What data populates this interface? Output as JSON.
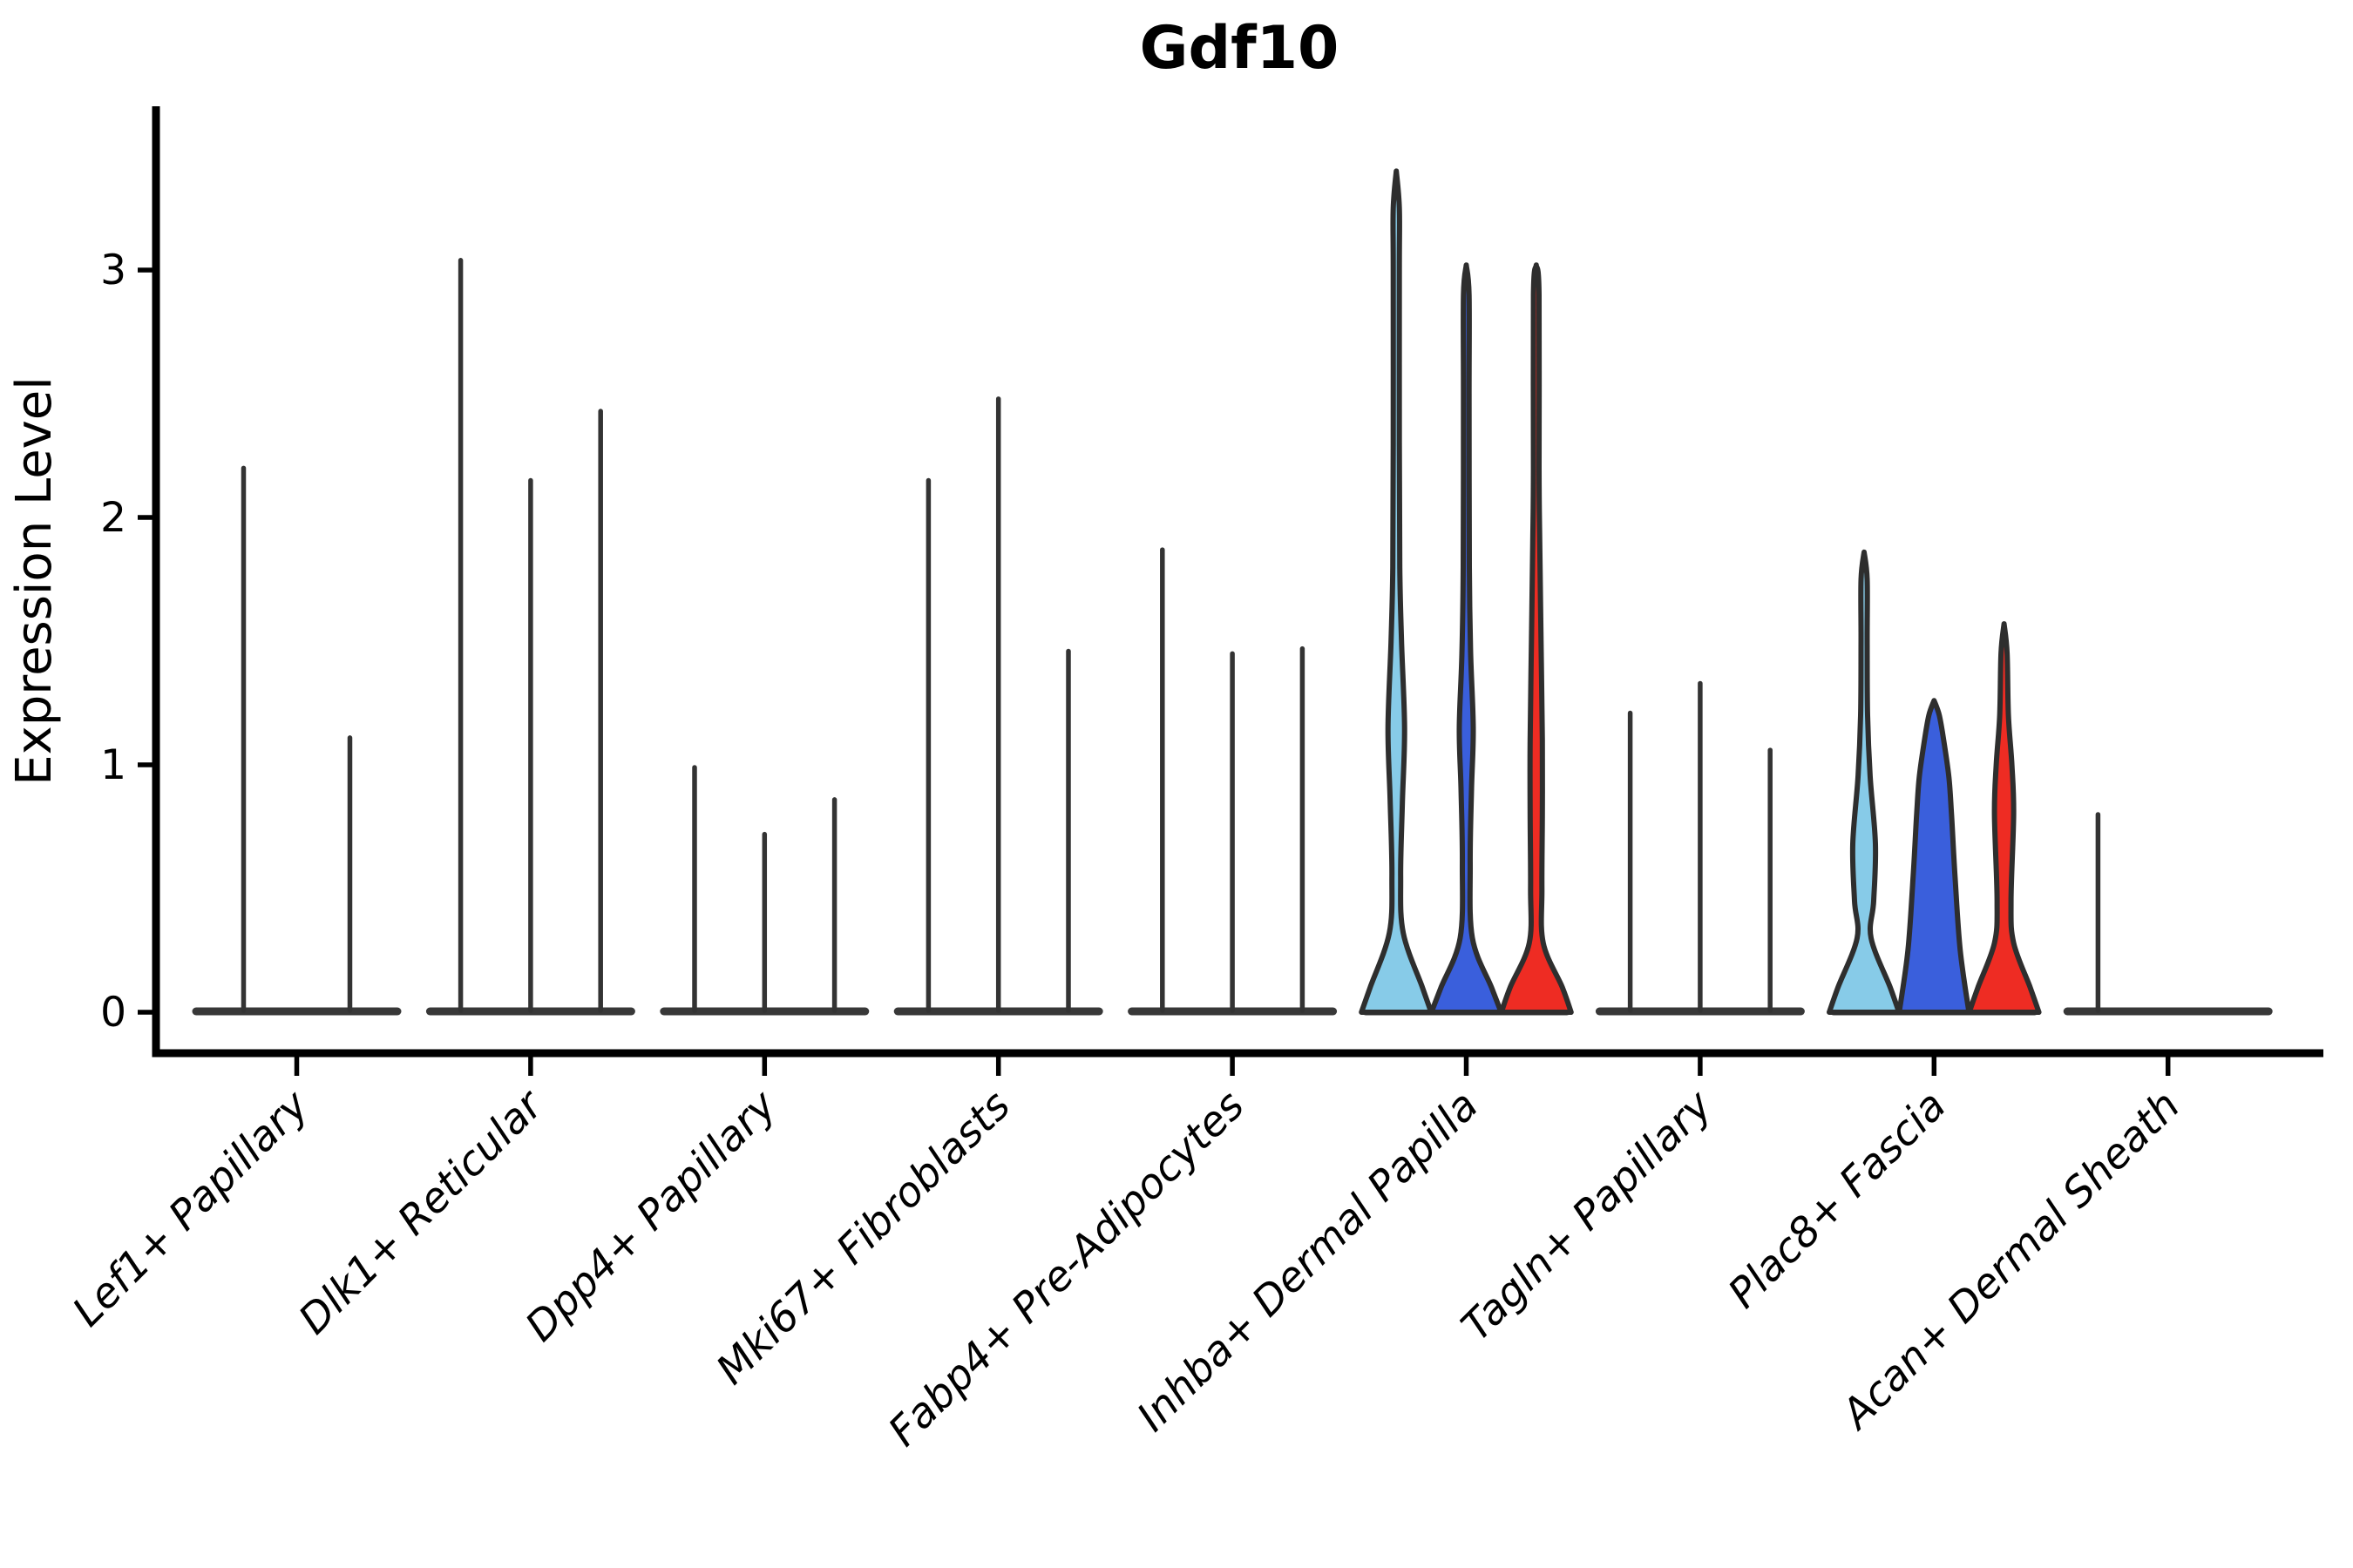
{
  "chart_data": {
    "type": "violin",
    "title": "Gdf10",
    "ylabel": "Expression Level",
    "xlabel": "",
    "grid": false,
    "legend_position": "none",
    "yticks": [
      0,
      1,
      2,
      3
    ],
    "ylim": [
      -0.17,
      3.65
    ],
    "categories": [
      "Lef1+ Papillary",
      "Dlk1+ Reticular",
      "Dpp4+ Papillary",
      "Mki67+ Fibroblasts",
      "Fabp4+ Pre-Adipocytes",
      "Inhba+ Dermal Papilla",
      "Tagln+ Papillary",
      "Plac8+ Fascia",
      "Acan+ Dermal Sheath"
    ],
    "colors": {
      "spike": "#333333",
      "outline": "#2e2e2e",
      "base_bar": "#383838",
      "lightblue": "#87cbe8",
      "blue": "#3a5fdc",
      "red": "#ee2c23"
    },
    "groups": [
      {
        "category": "Lef1+ Papillary",
        "violins": [
          {
            "style": "spike",
            "peak": 2.21
          },
          {
            "style": "spike",
            "peak": 1.12
          }
        ]
      },
      {
        "category": "Dlk1+ Reticular",
        "violins": [
          {
            "style": "spike",
            "peak": 3.05
          },
          {
            "style": "spike",
            "peak": 2.16
          },
          {
            "style": "spike",
            "peak": 2.44
          }
        ]
      },
      {
        "category": "Dpp4+ Papillary",
        "violins": [
          {
            "style": "spike",
            "peak": 1.0
          },
          {
            "style": "spike",
            "peak": 0.73
          },
          {
            "style": "spike",
            "peak": 0.87
          }
        ]
      },
      {
        "category": "Mki67+ Fibroblasts",
        "violins": [
          {
            "style": "spike",
            "peak": 2.16
          },
          {
            "style": "spike",
            "peak": 2.49
          },
          {
            "style": "spike",
            "peak": 1.47
          }
        ]
      },
      {
        "category": "Fabp4+ Pre-Adipocytes",
        "violins": [
          {
            "style": "spike",
            "peak": 1.88
          },
          {
            "style": "spike",
            "peak": 1.46
          },
          {
            "style": "spike",
            "peak": 1.48
          }
        ]
      },
      {
        "category": "Inhba+ Dermal Papilla",
        "violins": [
          {
            "style": "violin",
            "peak": 3.4,
            "color_key": "lightblue",
            "profile": [
              [
                0,
                40
              ],
              [
                0.1,
                30
              ],
              [
                0.32,
                8
              ],
              [
                0.55,
                5
              ],
              [
                0.85,
                7
              ],
              [
                1.15,
                9.5
              ],
              [
                1.5,
                6
              ],
              [
                1.8,
                4
              ],
              [
                2.3,
                3.5
              ],
              [
                3.0,
                3.5
              ],
              [
                3.25,
                3.5
              ]
            ]
          },
          {
            "style": "violin",
            "peak": 3.02,
            "color_key": "blue",
            "profile": [
              [
                0,
                40
              ],
              [
                0.1,
                29
              ],
              [
                0.3,
                7
              ],
              [
                0.6,
                4.5
              ],
              [
                0.9,
                6
              ],
              [
                1.15,
                8
              ],
              [
                1.45,
                5
              ],
              [
                1.8,
                3.5
              ],
              [
                2.5,
                3.2
              ],
              [
                2.9,
                3.2
              ]
            ]
          },
          {
            "style": "violin",
            "peak": 3.02,
            "color_key": "red",
            "profile": [
              [
                0,
                40
              ],
              [
                0.1,
                30
              ],
              [
                0.28,
                8
              ],
              [
                0.5,
                6.5
              ],
              [
                0.8,
                7
              ],
              [
                1.1,
                7
              ],
              [
                1.5,
                5.5
              ],
              [
                1.9,
                4
              ],
              [
                2.2,
                3.2
              ],
              [
                2.9,
                3.2
              ]
            ]
          }
        ]
      },
      {
        "category": "Tagln+ Papillary",
        "violins": [
          {
            "style": "spike",
            "peak": 1.22
          },
          {
            "style": "spike",
            "peak": 1.34
          },
          {
            "style": "spike",
            "peak": 1.07
          }
        ]
      },
      {
        "category": "Plac8+ Fascia",
        "violins": [
          {
            "style": "violin",
            "peak": 1.86,
            "color_key": "lightblue",
            "profile": [
              [
                0,
                40
              ],
              [
                0.1,
                30
              ],
              [
                0.3,
                8
              ],
              [
                0.45,
                11
              ],
              [
                0.68,
                13
              ],
              [
                0.95,
                7
              ],
              [
                1.2,
                4
              ],
              [
                1.5,
                3.5
              ],
              [
                1.75,
                3.5
              ]
            ]
          },
          {
            "style": "violin",
            "peak": 1.26,
            "color_key": "blue",
            "profile": [
              [
                0,
                40
              ],
              [
                0.25,
                30
              ],
              [
                0.55,
                24
              ],
              [
                0.8,
                20
              ],
              [
                0.95,
                17
              ],
              [
                1.1,
                11
              ],
              [
                1.2,
                6
              ]
            ]
          },
          {
            "style": "violin",
            "peak": 1.57,
            "color_key": "red",
            "profile": [
              [
                0,
                40
              ],
              [
                0.1,
                30
              ],
              [
                0.28,
                11
              ],
              [
                0.45,
                8
              ],
              [
                0.8,
                11
              ],
              [
                1.0,
                9
              ],
              [
                1.2,
                5
              ],
              [
                1.45,
                3.5
              ]
            ]
          }
        ]
      },
      {
        "category": "Acan+ Dermal Sheath",
        "violins": [
          {
            "style": "spike",
            "peak": 0.81
          },
          {
            "style": "spike",
            "peak": 0.0
          },
          {
            "style": "spike",
            "peak": 0.0
          }
        ]
      }
    ]
  }
}
